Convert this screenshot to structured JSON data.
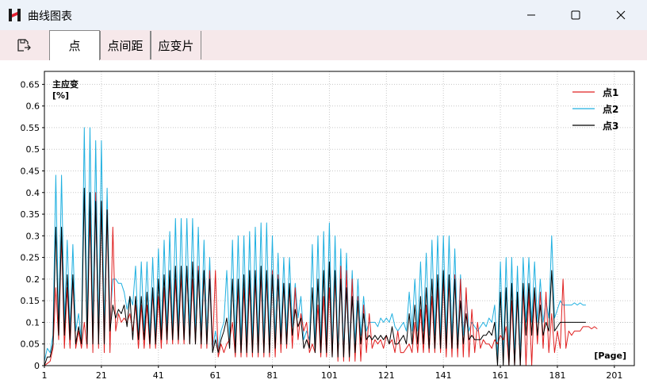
{
  "window": {
    "title": "曲线图表",
    "app_icon": "app-logo-icon",
    "minimize_icon": "minimize-icon",
    "maximize_icon": "maximize-icon",
    "close_icon": "close-icon"
  },
  "toolbar": {
    "save_icon": "save-export-icon",
    "tabs": [
      {
        "label": "点",
        "active": true
      },
      {
        "label": "点间距",
        "active": false
      },
      {
        "label": "应变片",
        "active": false
      }
    ]
  },
  "chart_data": {
    "type": "line",
    "ylabel_line1": "主应变",
    "ylabel_line2": "[%]",
    "xlabel": "[Page]",
    "xlim": [
      1,
      208
    ],
    "ylim": [
      0,
      0.68
    ],
    "x_ticks": [
      1,
      21,
      41,
      61,
      81,
      101,
      121,
      141,
      161,
      181,
      201
    ],
    "y_ticks": [
      "0",
      "0.05",
      "0.1",
      "0.15",
      "0.2",
      "0.25",
      "0.3",
      "0.35",
      "0.4",
      "0.45",
      "0.5",
      "0.55",
      "0.6",
      "0.65"
    ],
    "grid": true,
    "legend_position": "top-right",
    "series": [
      {
        "name": "点1",
        "color": "#e02020",
        "values": [
          0,
          0.005,
          0.01,
          0.04,
          0.18,
          0.06,
          0.3,
          0.04,
          0.18,
          0.04,
          0.2,
          0.04,
          0.08,
          0.04,
          0.1,
          0.04,
          0.36,
          0.03,
          0.4,
          0.04,
          0.38,
          0.03,
          0.36,
          0.03,
          0.32,
          0.08,
          0.12,
          0.1,
          0.11,
          0.1,
          0.12,
          0.08,
          0.14,
          0.04,
          0.14,
          0.04,
          0.14,
          0.04,
          0.17,
          0.04,
          0.16,
          0.04,
          0.18,
          0.05,
          0.2,
          0.05,
          0.2,
          0.05,
          0.21,
          0.05,
          0.22,
          0.05,
          0.2,
          0.05,
          0.23,
          0.04,
          0.22,
          0.04,
          0.22,
          0.04,
          0.22,
          0.02,
          0.05,
          0.03,
          0.05,
          0.06,
          0.1,
          0.02,
          0.18,
          0.02,
          0.18,
          0.02,
          0.19,
          0.02,
          0.2,
          0.02,
          0.21,
          0.02,
          0.21,
          0.02,
          0.22,
          0.02,
          0.21,
          0.03,
          0.19,
          0.04,
          0.18,
          0.04,
          0.18,
          0.06,
          0.12,
          0.08,
          0.1,
          0.03,
          0.05,
          0.03,
          0.14,
          0.02,
          0.16,
          0.02,
          0.18,
          0.02,
          0.21,
          0.01,
          0.23,
          0.01,
          0.22,
          0.01,
          0.2,
          0.01,
          0.16,
          0.01,
          0.14,
          0.03,
          0.12,
          0.04,
          0.06,
          0.05,
          0.06,
          0.04,
          0.07,
          0.05,
          0.06,
          0.03,
          0.08,
          0.03,
          0.03,
          0.04,
          0.05,
          0.03,
          0.1,
          0.03,
          0.13,
          0.03,
          0.14,
          0.03,
          0.16,
          0.03,
          0.18,
          0.03,
          0.2,
          0.02,
          0.2,
          0.02,
          0.21,
          0.02,
          0.2,
          0.02,
          0.18,
          0.02,
          0.13,
          0.03,
          0.1,
          0.04,
          0.06,
          0.05,
          0.05,
          0.04,
          0.06,
          0.05,
          0.07,
          0.06,
          0.09,
          0,
          0.15,
          0,
          0.16,
          0,
          0.18,
          0,
          0.17,
          0,
          0.17,
          0.05,
          0.17,
          0.04,
          0.17,
          0.03,
          0.12,
          0.03,
          0.08,
          0.04,
          0.2,
          0.04,
          0.08,
          0.07,
          0.08,
          0.08,
          0.08,
          0.09,
          0.09,
          0.09,
          0.085,
          0.09,
          0.085
        ]
      },
      {
        "name": "点2",
        "color": "#20b0e0",
        "values": [
          0.01,
          0.04,
          0.03,
          0.07,
          0.44,
          0.09,
          0.44,
          0.1,
          0.29,
          0.08,
          0.28,
          0.08,
          0.12,
          0.06,
          0.55,
          0.08,
          0.55,
          0.08,
          0.52,
          0.08,
          0.52,
          0.08,
          0.41,
          0.1,
          0.2,
          0.2,
          0.19,
          0.19,
          0.17,
          0.13,
          0.16,
          0.14,
          0.23,
          0.06,
          0.24,
          0.08,
          0.24,
          0.07,
          0.25,
          0.07,
          0.27,
          0.07,
          0.29,
          0.08,
          0.31,
          0.08,
          0.34,
          0.08,
          0.34,
          0.08,
          0.34,
          0.08,
          0.34,
          0.07,
          0.32,
          0.07,
          0.29,
          0.07,
          0.25,
          0.04,
          0.08,
          0.04,
          0.08,
          0.1,
          0.22,
          0.06,
          0.29,
          0.05,
          0.3,
          0.05,
          0.3,
          0.05,
          0.31,
          0.05,
          0.32,
          0.05,
          0.33,
          0.05,
          0.33,
          0.05,
          0.3,
          0.06,
          0.26,
          0.07,
          0.25,
          0.07,
          0.25,
          0.09,
          0.19,
          0.11,
          0.16,
          0.06,
          0.08,
          0.06,
          0.28,
          0.04,
          0.3,
          0.04,
          0.31,
          0.04,
          0.33,
          0.03,
          0.3,
          0.03,
          0.27,
          0.03,
          0.26,
          0.03,
          0.22,
          0.05,
          0.2,
          0.07,
          0.16,
          0.08,
          0.1,
          0.1,
          0.1,
          0.09,
          0.11,
          0.1,
          0.11,
          0.1,
          0.12,
          0.09,
          0.08,
          0.09,
          0.1,
          0.08,
          0.17,
          0.08,
          0.2,
          0.08,
          0.24,
          0.08,
          0.26,
          0.07,
          0.29,
          0.07,
          0.3,
          0.06,
          0.3,
          0.06,
          0.3,
          0.06,
          0.27,
          0.06,
          0.21,
          0.07,
          0.17,
          0.08,
          0.1,
          0.09,
          0.08,
          0.09,
          0.1,
          0.09,
          0.11,
          0.1,
          0.14,
          0.02,
          0.24,
          0.02,
          0.25,
          0.02,
          0.25,
          0.02,
          0.23,
          0.02,
          0.25,
          0.1,
          0.25,
          0.1,
          0.24,
          0.1,
          0.2,
          0.1,
          0.15,
          0.11,
          0.3,
          0.11,
          0.13,
          0.15,
          0.14,
          0.14,
          0.14,
          0.14,
          0.145,
          0.14,
          0.145,
          0.14,
          0.14
        ]
      },
      {
        "name": "点3",
        "color": "#000000",
        "values": [
          0,
          0.02,
          0.02,
          0.05,
          0.32,
          0.07,
          0.32,
          0.07,
          0.21,
          0.06,
          0.21,
          0.05,
          0.09,
          0.05,
          0.41,
          0.05,
          0.4,
          0.05,
          0.38,
          0.05,
          0.38,
          0.05,
          0.36,
          0.08,
          0.14,
          0.11,
          0.13,
          0.12,
          0.14,
          0.09,
          0.16,
          0.06,
          0.16,
          0.06,
          0.16,
          0.06,
          0.17,
          0.05,
          0.18,
          0.05,
          0.2,
          0.06,
          0.21,
          0.06,
          0.22,
          0.06,
          0.23,
          0.06,
          0.23,
          0.06,
          0.23,
          0.05,
          0.24,
          0.05,
          0.22,
          0.05,
          0.22,
          0.05,
          0.2,
          0.03,
          0.06,
          0.03,
          0.06,
          0.08,
          0.11,
          0.04,
          0.2,
          0.03,
          0.2,
          0.03,
          0.21,
          0.03,
          0.22,
          0.03,
          0.22,
          0.03,
          0.23,
          0.03,
          0.22,
          0.03,
          0.21,
          0.04,
          0.2,
          0.05,
          0.19,
          0.05,
          0.19,
          0.07,
          0.13,
          0.09,
          0.11,
          0.04,
          0.06,
          0.04,
          0.18,
          0.03,
          0.2,
          0.03,
          0.22,
          0.03,
          0.24,
          0.02,
          0.22,
          0.02,
          0.2,
          0.02,
          0.18,
          0.02,
          0.16,
          0.03,
          0.15,
          0.05,
          0.12,
          0.06,
          0.07,
          0.06,
          0.07,
          0.06,
          0.07,
          0.06,
          0.07,
          0.05,
          0.09,
          0.05,
          0.05,
          0.06,
          0.07,
          0.05,
          0.12,
          0.05,
          0.14,
          0.05,
          0.16,
          0.05,
          0.18,
          0.04,
          0.2,
          0.04,
          0.21,
          0.04,
          0.22,
          0.04,
          0.21,
          0.04,
          0.2,
          0.04,
          0.15,
          0.05,
          0.12,
          0.06,
          0.07,
          0.06,
          0.06,
          0.06,
          0.07,
          0.07,
          0.08,
          0.07,
          0.1,
          0,
          0.17,
          0,
          0.18,
          0,
          0.19,
          0,
          0.17,
          0,
          0.19,
          0.07,
          0.19,
          0.07,
          0.18,
          0.07,
          0.14,
          0.07,
          0.1,
          0.08,
          0.22,
          0.08,
          0.09,
          0.1,
          0.1,
          0.1,
          0.1,
          0.1,
          0.1,
          0.1,
          0.1,
          0.1,
          0.1
        ]
      }
    ]
  }
}
